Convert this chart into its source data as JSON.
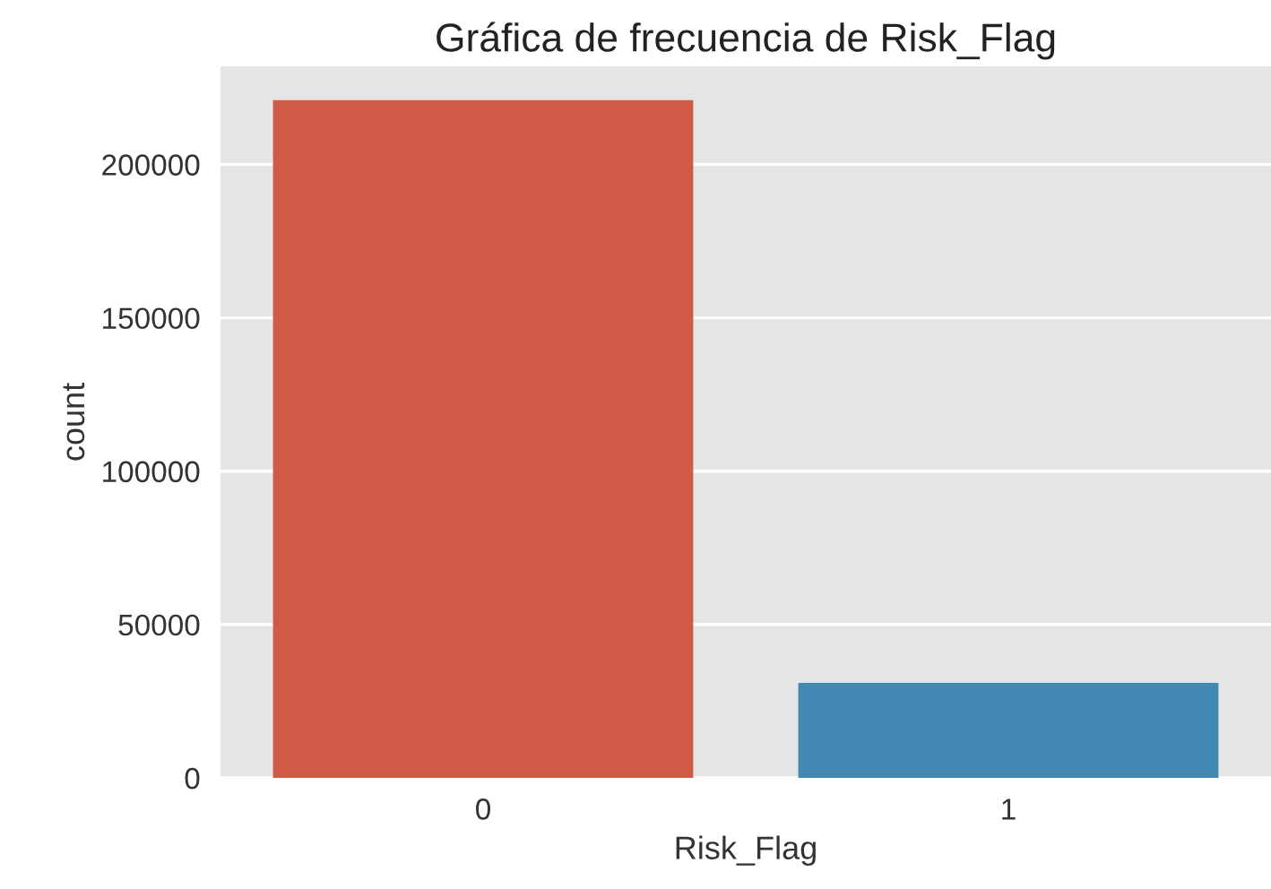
{
  "chart_data": {
    "type": "bar",
    "title": "Gráfica de frecuencia de Risk_Flag",
    "xlabel": "Risk_Flag",
    "ylabel": "count",
    "categories": [
      "0",
      "1"
    ],
    "values": [
      221000,
      31000
    ],
    "colors": [
      "#cf5b46",
      "#4188b2"
    ],
    "ylim": [
      0,
      232000
    ],
    "yticks": [
      0,
      50000,
      100000,
      150000,
      200000
    ],
    "grid": "y",
    "legend": false
  }
}
